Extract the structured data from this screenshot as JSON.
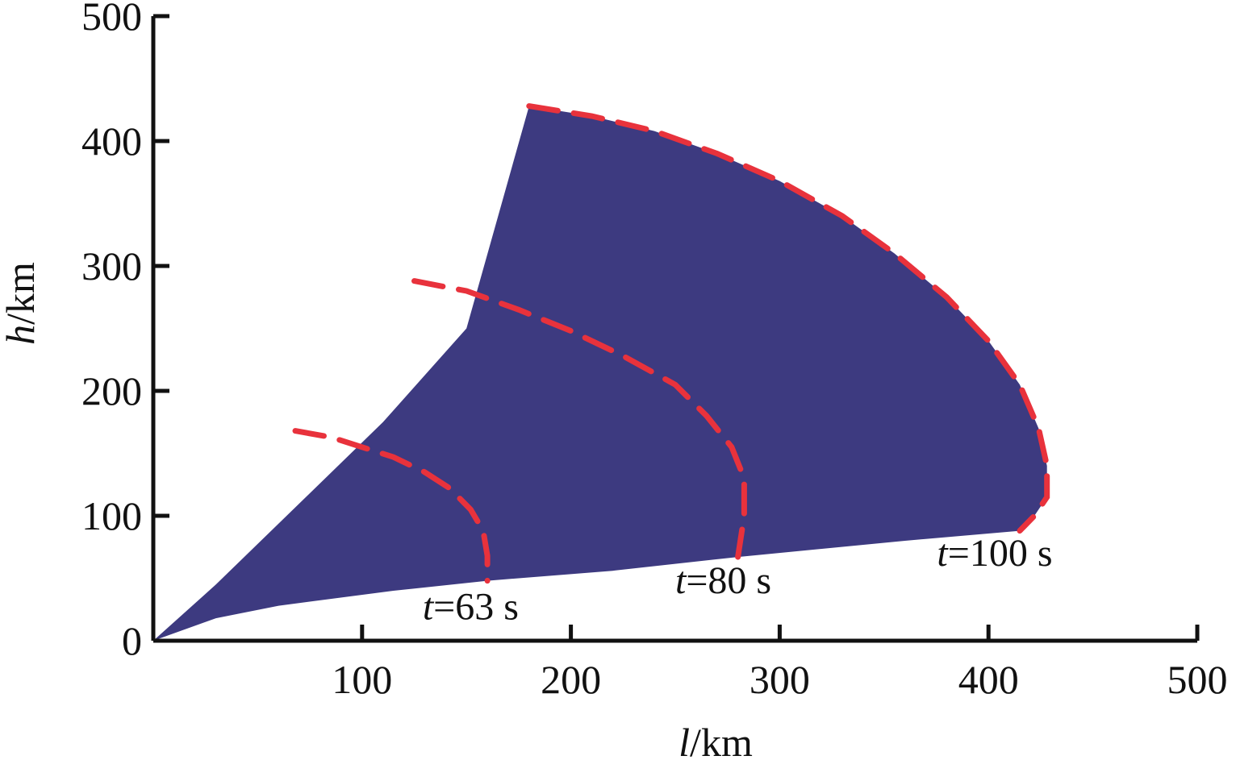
{
  "chart_data": {
    "type": "area",
    "title": "",
    "xlabel": {
      "var": "l",
      "unit": "/km"
    },
    "ylabel": {
      "var": "h",
      "unit": "/km"
    },
    "xlim": [
      0,
      500
    ],
    "ylim": [
      0,
      500
    ],
    "xticks": [
      "100",
      "200",
      "300",
      "400",
      "500"
    ],
    "yticks": [
      "0",
      "100",
      "200",
      "300",
      "400",
      "500"
    ],
    "grid": false,
    "colors": {
      "region": "#3d3a80",
      "boundary": "#e8323c",
      "axis": "#111111"
    },
    "region": {
      "upper_edge": [
        [
          0,
          0
        ],
        [
          30,
          45
        ],
        [
          70,
          110
        ],
        [
          110,
          175
        ],
        [
          150,
          250
        ],
        [
          180,
          428
        ]
      ],
      "lower_edge": [
        [
          0,
          0
        ],
        [
          30,
          18
        ],
        [
          60,
          28
        ],
        [
          115,
          40
        ],
        [
          160,
          48
        ],
        [
          220,
          56
        ],
        [
          280,
          67
        ],
        [
          360,
          80
        ],
        [
          415,
          88
        ]
      ]
    },
    "series": [
      {
        "t_var": "t",
        "t_label": "=63 s",
        "points": [
          [
            68,
            168
          ],
          [
            85,
            163
          ],
          [
            100,
            155
          ],
          [
            115,
            147
          ],
          [
            130,
            135
          ],
          [
            142,
            122
          ],
          [
            152,
            105
          ],
          [
            158,
            88
          ],
          [
            160,
            68
          ],
          [
            160,
            48
          ]
        ]
      },
      {
        "t_var": "t",
        "t_label": "=80 s",
        "points": [
          [
            125,
            288
          ],
          [
            150,
            280
          ],
          [
            175,
            265
          ],
          [
            200,
            248
          ],
          [
            225,
            228
          ],
          [
            250,
            205
          ],
          [
            265,
            180
          ],
          [
            277,
            155
          ],
          [
            283,
            130
          ],
          [
            283,
            100
          ],
          [
            280,
            67
          ]
        ]
      },
      {
        "t_var": "t",
        "t_label": "=100 s",
        "points": [
          [
            180,
            428
          ],
          [
            210,
            420
          ],
          [
            240,
            408
          ],
          [
            270,
            390
          ],
          [
            300,
            368
          ],
          [
            330,
            340
          ],
          [
            355,
            310
          ],
          [
            380,
            275
          ],
          [
            400,
            240
          ],
          [
            415,
            205
          ],
          [
            424,
            170
          ],
          [
            428,
            140
          ],
          [
            428,
            115
          ],
          [
            422,
            100
          ],
          [
            415,
            88
          ]
        ]
      }
    ],
    "annotations": [
      {
        "var": "t",
        "text": "=63 s",
        "x": 152,
        "y": 17
      },
      {
        "var": "t",
        "text": "=80 s",
        "x": 273,
        "y": 38
      },
      {
        "var": "t",
        "text": "=100 s",
        "x": 403,
        "y": 60
      }
    ]
  }
}
